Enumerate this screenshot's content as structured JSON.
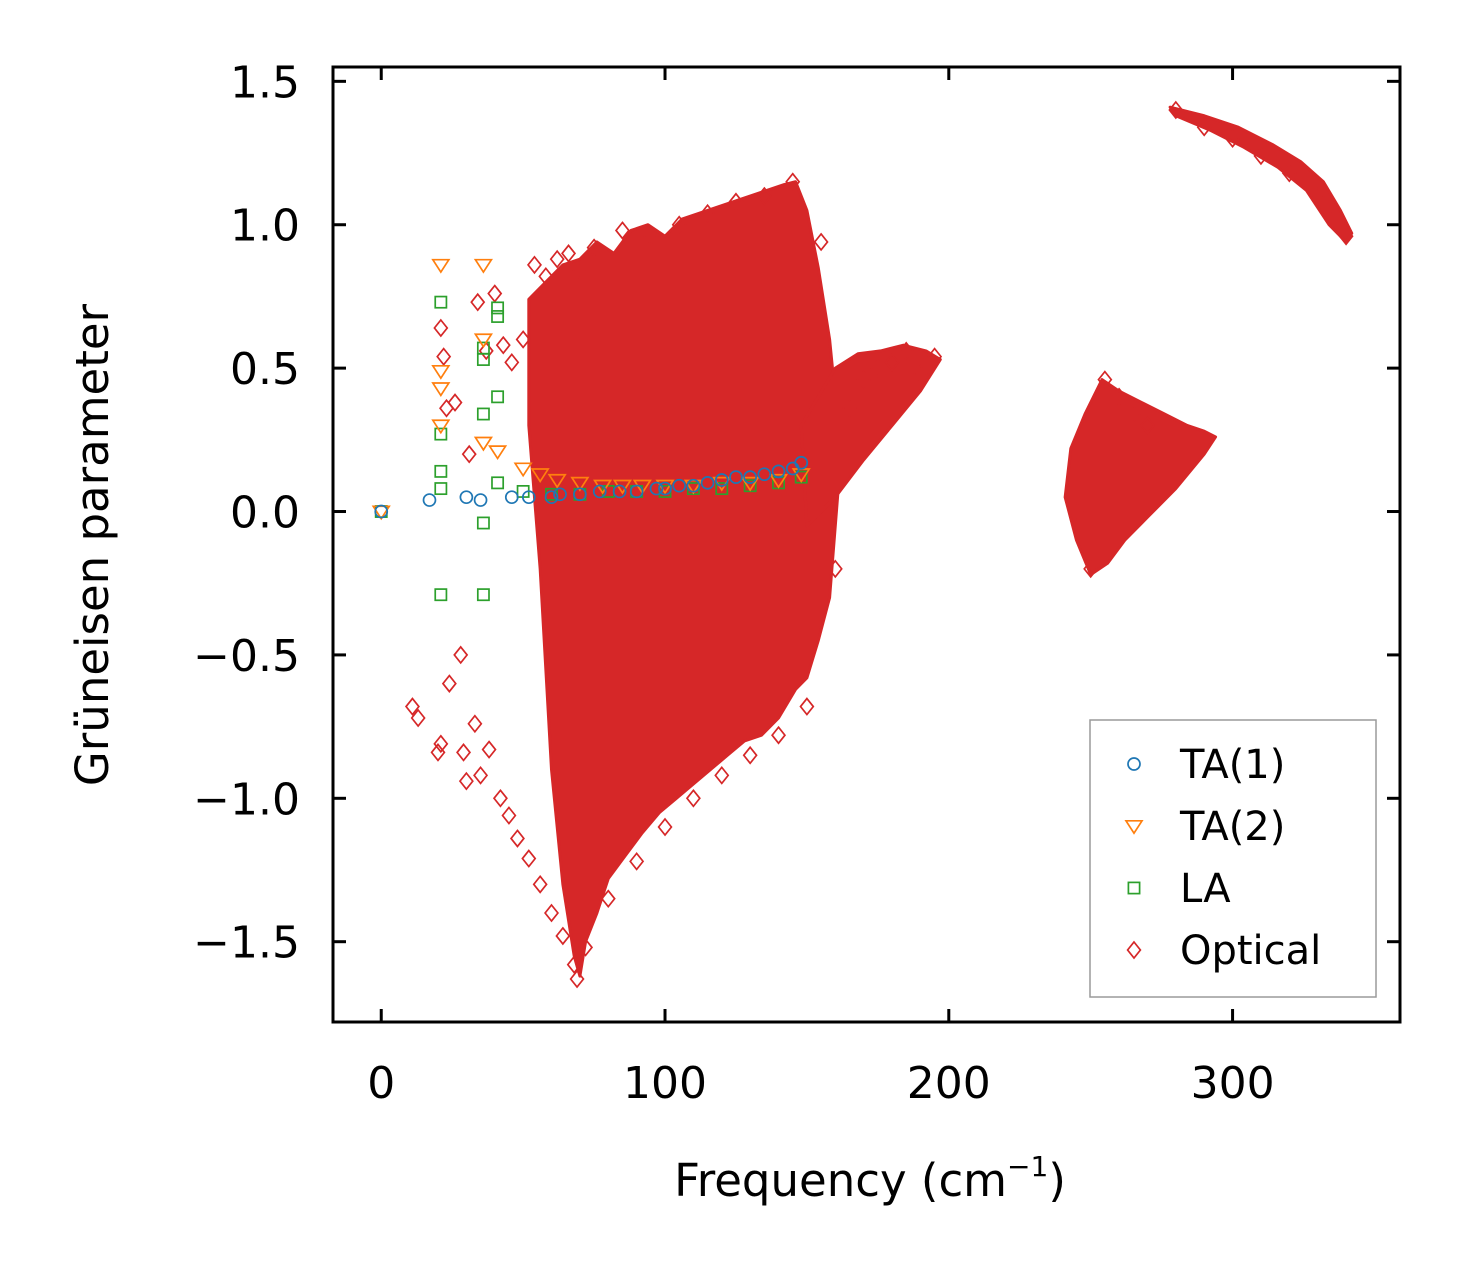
{
  "chart_data": {
    "type": "scatter",
    "title": "",
    "xlabel": "Frequency (cm",
    "xlabel_sup": "−1",
    "xlabel_end": ")",
    "ylabel": "Grüneisen parameter",
    "xlim": [
      -17,
      359
    ],
    "ylim": [
      -1.78,
      1.55
    ],
    "xticks": [
      0,
      100,
      200,
      300
    ],
    "xtick_labels": [
      "0",
      "100",
      "200",
      "300"
    ],
    "yticks": [
      1.5,
      1.0,
      0.5,
      0.0,
      -0.5,
      -1.0,
      -1.5
    ],
    "ytick_labels": [
      "1.5",
      "1.0",
      "0.5",
      "0.0",
      "−0.5",
      "−1.0",
      "−1.5"
    ],
    "grid": false,
    "legend_position": "bottom-right",
    "series": [
      {
        "name": "TA(1)",
        "marker": "circle",
        "color": "#1f77b4",
        "x": [
          0,
          17,
          30,
          35,
          46,
          52,
          60,
          63,
          70,
          77,
          84,
          90,
          97,
          100,
          105,
          110,
          115,
          120,
          125,
          130,
          135,
          140,
          145,
          148
        ],
        "y": [
          0.0,
          0.04,
          0.05,
          0.04,
          0.05,
          0.05,
          0.05,
          0.06,
          0.06,
          0.07,
          0.07,
          0.07,
          0.08,
          0.08,
          0.09,
          0.09,
          0.1,
          0.11,
          0.12,
          0.12,
          0.13,
          0.14,
          0.15,
          0.17
        ]
      },
      {
        "name": "TA(2)",
        "marker": "triangle-down",
        "color": "#ff7f0e",
        "x": [
          0,
          21,
          21,
          21,
          21,
          36,
          36,
          36,
          41,
          50,
          56,
          62,
          70,
          78,
          85,
          92,
          100,
          110,
          120,
          130,
          140,
          148
        ],
        "y": [
          0.0,
          0.86,
          0.49,
          0.43,
          0.3,
          0.86,
          0.6,
          0.24,
          0.21,
          0.15,
          0.13,
          0.11,
          0.1,
          0.09,
          0.09,
          0.09,
          0.09,
          0.09,
          0.1,
          0.1,
          0.11,
          0.13
        ]
      },
      {
        "name": "LA",
        "marker": "square",
        "color": "#2ca02c",
        "x": [
          0,
          21,
          21,
          21,
          21,
          21,
          36,
          36,
          36,
          36,
          36,
          41,
          41,
          41,
          41,
          50,
          60,
          70,
          80,
          90,
          100,
          110,
          120,
          130,
          140,
          148
        ],
        "y": [
          0.0,
          0.73,
          0.27,
          0.14,
          0.08,
          -0.29,
          0.57,
          0.53,
          0.34,
          -0.04,
          -0.29,
          0.71,
          0.68,
          0.4,
          0.1,
          0.07,
          0.06,
          0.06,
          0.07,
          0.07,
          0.07,
          0.08,
          0.08,
          0.09,
          0.1,
          0.12
        ]
      },
      {
        "name": "Optical",
        "marker": "diamond",
        "color": "#d62728",
        "x": [
          11,
          13,
          20,
          21,
          21,
          22,
          23,
          24,
          26,
          28,
          29,
          30,
          31,
          33,
          34,
          35,
          37,
          38,
          40,
          42,
          43,
          45,
          46,
          48,
          50,
          52,
          54,
          56,
          58,
          60,
          62,
          64,
          66,
          68,
          69,
          70,
          72,
          75,
          80,
          85,
          90,
          95,
          100,
          105,
          110,
          115,
          120,
          125,
          130,
          135,
          140,
          145,
          150,
          155,
          160,
          165,
          170,
          175,
          180,
          185,
          190,
          195,
          245,
          250,
          255,
          260,
          265,
          270,
          280,
          290,
          300,
          310,
          320,
          330,
          335,
          340
        ],
        "y": [
          -0.68,
          -0.72,
          -0.84,
          0.64,
          -0.81,
          0.54,
          0.36,
          -0.6,
          0.38,
          -0.5,
          -0.84,
          -0.94,
          0.2,
          -0.74,
          0.73,
          -0.92,
          0.56,
          -0.83,
          0.76,
          -1.0,
          0.58,
          -1.06,
          0.52,
          -1.14,
          0.6,
          -1.21,
          0.86,
          -1.3,
          0.82,
          -1.4,
          0.88,
          -1.48,
          0.9,
          -1.58,
          -1.63,
          0.84,
          -1.52,
          0.92,
          -1.35,
          0.98,
          -1.22,
          0.96,
          -1.1,
          1.0,
          -1.0,
          1.04,
          -0.92,
          1.08,
          -0.85,
          1.1,
          -0.78,
          1.15,
          -0.68,
          0.94,
          -0.2,
          0.36,
          0.46,
          0.5,
          0.52,
          0.56,
          0.48,
          0.54,
          0.0,
          -0.2,
          0.46,
          0.4,
          0.34,
          0.3,
          1.4,
          1.34,
          1.3,
          1.24,
          1.18,
          1.1,
          1.02,
          0.96
        ]
      }
    ],
    "optical_regions": [
      {
        "label": "dense acoustic-range optical band",
        "outline_x": [
          52,
          58,
          64,
          70,
          76,
          82,
          88,
          94,
          100,
          106,
          112,
          118,
          124,
          130,
          136,
          142,
          146,
          150,
          154,
          158,
          162,
          158,
          154,
          150,
          146,
          140,
          134,
          128,
          122,
          116,
          110,
          104,
          98,
          92,
          86,
          80,
          76,
          72,
          70,
          68,
          64,
          60,
          56,
          52
        ],
        "outline_y": [
          0.74,
          0.8,
          0.86,
          0.88,
          0.94,
          0.9,
          0.98,
          1.0,
          0.96,
          1.02,
          1.04,
          1.06,
          1.08,
          1.1,
          1.12,
          1.14,
          1.15,
          1.05,
          0.85,
          0.6,
          0.2,
          -0.3,
          -0.45,
          -0.58,
          -0.62,
          -0.72,
          -0.78,
          -0.8,
          -0.85,
          -0.9,
          -0.95,
          -1.0,
          -1.05,
          -1.12,
          -1.2,
          -1.28,
          -1.4,
          -1.5,
          -1.62,
          -1.55,
          -1.3,
          -0.9,
          -0.2,
          0.3
        ]
      },
      {
        "label": "wedge band",
        "outline_x": [
          148,
          160,
          168,
          176,
          184,
          192,
          197,
          190,
          180,
          170,
          160,
          150
        ],
        "outline_y": [
          0.3,
          0.5,
          0.55,
          0.56,
          0.58,
          0.56,
          0.53,
          0.42,
          0.3,
          0.18,
          0.05,
          -0.05
        ]
      },
      {
        "label": "mid-frequency band",
        "outline_x": [
          243,
          248,
          254,
          260,
          268,
          276,
          284,
          290,
          294,
          290,
          280,
          270,
          262,
          256,
          250,
          245,
          241
        ],
        "outline_y": [
          0.22,
          0.34,
          0.46,
          0.42,
          0.38,
          0.34,
          0.3,
          0.28,
          0.26,
          0.2,
          0.08,
          -0.02,
          -0.1,
          -0.18,
          -0.22,
          -0.1,
          0.05
        ]
      },
      {
        "label": "high-frequency band",
        "outline_x": [
          278,
          290,
          302,
          314,
          324,
          332,
          338,
          342,
          340,
          334,
          326,
          316,
          304,
          292,
          280
        ],
        "outline_y": [
          1.41,
          1.38,
          1.34,
          1.28,
          1.22,
          1.15,
          1.05,
          0.97,
          0.94,
          1.0,
          1.12,
          1.2,
          1.27,
          1.33,
          1.38
        ]
      }
    ]
  }
}
